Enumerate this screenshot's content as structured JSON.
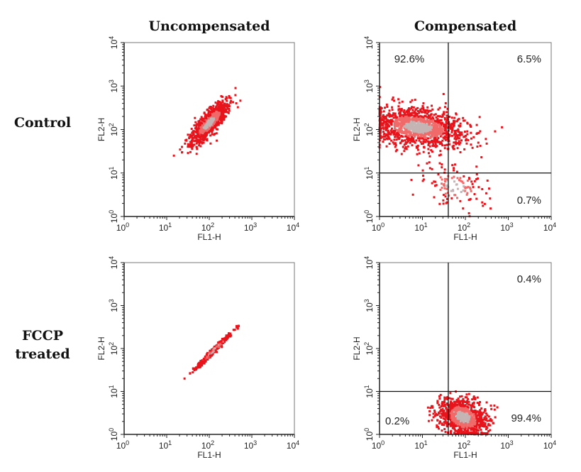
{
  "columns": [
    "Uncompensated",
    "Compensated"
  ],
  "rows": [
    {
      "line1": "Control",
      "line2": ""
    },
    {
      "line1": "FCCP",
      "line2": "treated"
    }
  ],
  "colors": {
    "sparse": "#e8141c",
    "mid": "#f06a6a",
    "dense": "#c4b4b4",
    "axis": "#222222"
  },
  "chart_data": [
    {
      "type": "scatter",
      "title": "Control - Uncompensated",
      "xlabel": "FL1-H",
      "ylabel": "FL2-H",
      "xscale": "log",
      "yscale": "log",
      "xlim": [
        1,
        10000
      ],
      "ylim": [
        1,
        10000
      ],
      "xticks": [
        "10^0",
        "10^1",
        "10^2",
        "10^3",
        "10^4"
      ],
      "yticks": [
        "10^0",
        "10^1",
        "10^2",
        "10^3",
        "10^4"
      ],
      "populations": [
        {
          "center_log": [
            2.0,
            2.15
          ],
          "spread_log": [
            0.32,
            0.1
          ],
          "angle_deg": 48,
          "n": 900
        }
      ],
      "quadrants": null
    },
    {
      "type": "scatter",
      "title": "Control - Compensated",
      "xlabel": "FL1-H",
      "ylabel": "FL2-H",
      "xscale": "log",
      "yscale": "log",
      "xlim": [
        1,
        10000
      ],
      "ylim": [
        1,
        10000
      ],
      "xticks": [
        "10^0",
        "10^1",
        "10^2",
        "10^3",
        "10^4"
      ],
      "yticks": [
        "10^0",
        "10^1",
        "10^2",
        "10^3",
        "10^4"
      ],
      "populations": [
        {
          "center_log": [
            0.9,
            2.05
          ],
          "spread_log": [
            0.55,
            0.22
          ],
          "angle_deg": -8,
          "n": 1300
        },
        {
          "center_log": [
            1.75,
            0.7
          ],
          "spread_log": [
            0.25,
            0.4
          ],
          "angle_deg": 70,
          "n": 120
        }
      ],
      "quadrants": {
        "x_gate": 40,
        "y_gate": 10,
        "upper_left": "92.6%",
        "upper_right": "6.5%",
        "lower_right": "0.7%"
      }
    },
    {
      "type": "scatter",
      "title": "FCCP treated - Uncompensated",
      "xlabel": "FL1-H",
      "ylabel": "FL2-H",
      "xscale": "log",
      "yscale": "log",
      "xlim": [
        1,
        10000
      ],
      "ylim": [
        1,
        10000
      ],
      "xticks": [
        "10^0",
        "10^1",
        "10^2",
        "10^3",
        "10^4"
      ],
      "yticks": [
        "10^0",
        "10^1",
        "10^2",
        "10^3",
        "10^4"
      ],
      "populations": [
        {
          "center_log": [
            2.1,
            1.95
          ],
          "spread_log": [
            0.32,
            0.025
          ],
          "angle_deg": 45,
          "n": 350
        }
      ],
      "quadrants": null
    },
    {
      "type": "scatter",
      "title": "FCCP treated - Compensated",
      "xlabel": "FL1-H",
      "ylabel": "FL2-H",
      "xscale": "log",
      "yscale": "log",
      "xlim": [
        1,
        10000
      ],
      "ylim": [
        1,
        10000
      ],
      "xticks": [
        "10^0",
        "10^1",
        "10^2",
        "10^3",
        "10^4"
      ],
      "yticks": [
        "10^0",
        "10^1",
        "10^2",
        "10^3",
        "10^4"
      ],
      "populations": [
        {
          "center_log": [
            1.95,
            0.4
          ],
          "spread_log": [
            0.2,
            0.3
          ],
          "angle_deg": 65,
          "n": 900
        }
      ],
      "quadrants": {
        "x_gate": 40,
        "y_gate": 10,
        "upper_right": "0.4%",
        "lower_left": "0.2%",
        "lower_right": "99.4%"
      }
    }
  ]
}
